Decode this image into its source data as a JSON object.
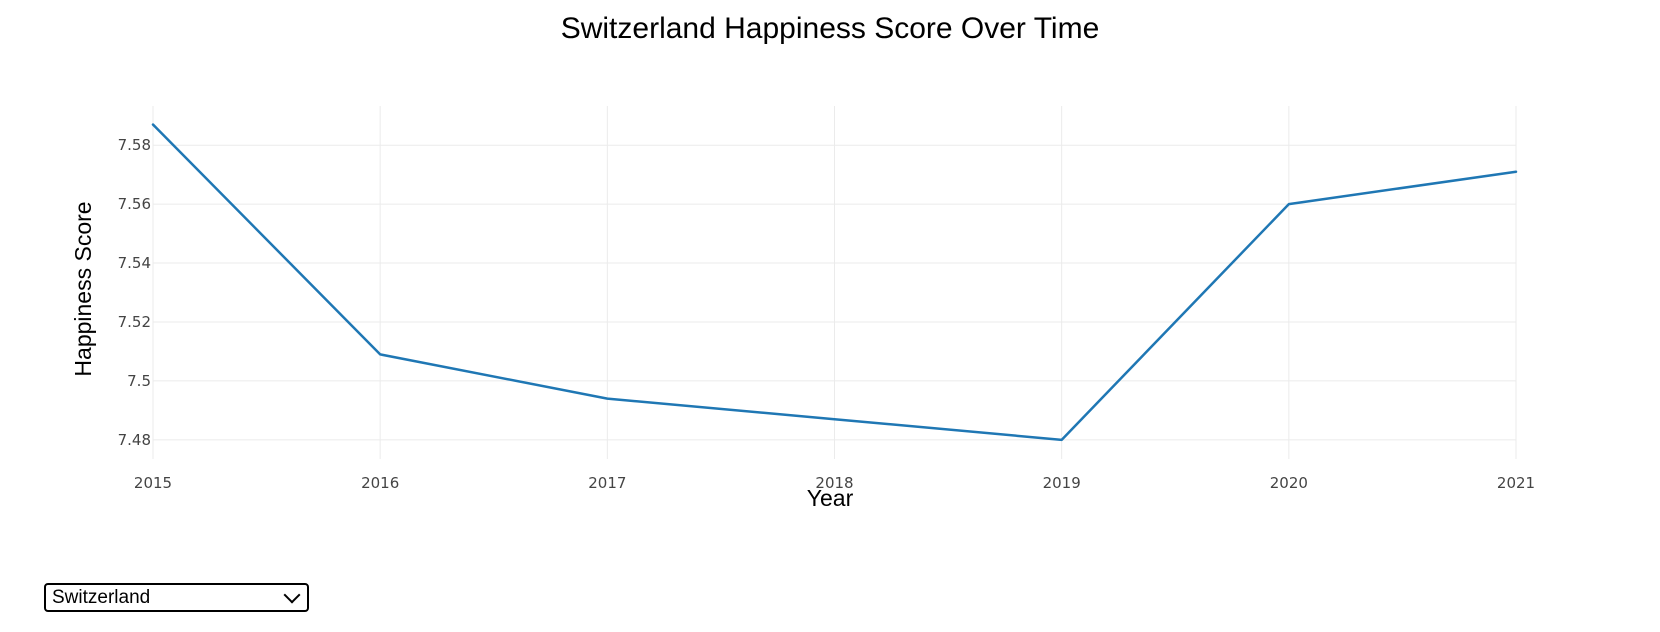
{
  "chart_data": {
    "type": "line",
    "title": "Switzerland Happiness Score Over Time",
    "xlabel": "Year",
    "ylabel": "Happiness Score",
    "x": [
      2015,
      2016,
      2017,
      2018,
      2019,
      2020,
      2021
    ],
    "series": [
      {
        "values": [
          7.587,
          7.509,
          7.494,
          7.487,
          7.48,
          7.56,
          7.571
        ],
        "color": "#1f77b4"
      }
    ],
    "xlim": [
      2015,
      2021
    ],
    "ylim": [
      7.4735,
      7.5933
    ],
    "x_ticks": [
      "2015",
      "2016",
      "2017",
      "2018",
      "2019",
      "2020",
      "2021"
    ],
    "y_ticks": [
      {
        "value": 7.48,
        "label": "7.48"
      },
      {
        "value": 7.5,
        "label": "7.5"
      },
      {
        "value": 7.52,
        "label": "7.52"
      },
      {
        "value": 7.54,
        "label": "7.54"
      },
      {
        "value": 7.56,
        "label": "7.56"
      },
      {
        "value": 7.58,
        "label": "7.58"
      }
    ],
    "grid": true,
    "legend": false
  },
  "country_select": {
    "value": "Switzerland"
  }
}
